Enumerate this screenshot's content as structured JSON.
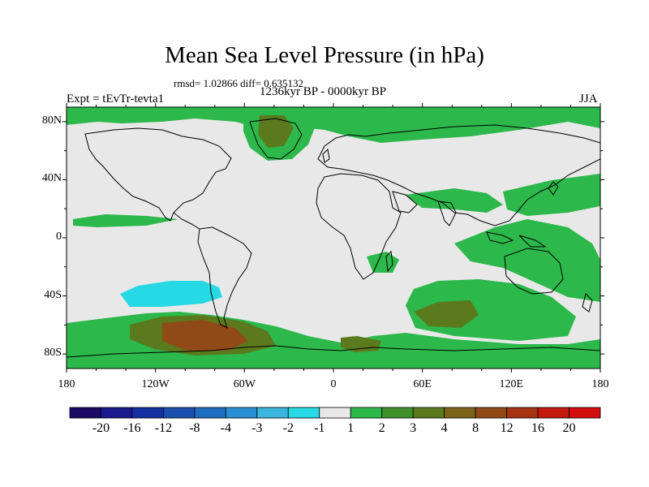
{
  "header": {
    "title": "Mean Sea Level Pressure (in hPa)",
    "stats": "rmsd= 1.02866 diff= 0.635132",
    "period": "1236kyr BP - 0000kyr BP",
    "experiment": "Expt = tEvTr-tevta1",
    "season": "JJA"
  },
  "map": {
    "lat_labels": [
      "80N",
      "40N",
      "0",
      "40S",
      "80S"
    ],
    "lon_labels": [
      "180",
      "120W",
      "60W",
      "0",
      "60E",
      "120E",
      "180"
    ],
    "lat_ticks": [
      80,
      40,
      0,
      -40,
      -80
    ],
    "lon_ticks": [
      -180,
      -120,
      -60,
      0,
      60,
      120,
      180
    ],
    "extent": {
      "lon": [
        -180,
        180
      ],
      "lat": [
        -90,
        90
      ]
    }
  },
  "colorbar": {
    "labels": [
      "-20",
      "-16",
      "-12",
      "-8",
      "-4",
      "-3",
      "-2",
      "-1",
      "1",
      "2",
      "3",
      "4",
      "8",
      "12",
      "16",
      "20"
    ],
    "colors": [
      "#1a0a66",
      "#1a1a8c",
      "#152fa0",
      "#1a4fae",
      "#1e6cc0",
      "#2a8fd0",
      "#3ab6dd",
      "#26d9e4",
      "#e8e8e8",
      "#2db84b",
      "#3f8f2a",
      "#5b7a1e",
      "#7a6419",
      "#8f4a17",
      "#a83214",
      "#c21a0f",
      "#d10d0d"
    ]
  },
  "field_colors": {
    "neutral": "#e8e8e8",
    "green": "#2db84b",
    "olive": "#5b7a1e",
    "brown": "#8f4a17",
    "cyan": "#26d9e4"
  }
}
